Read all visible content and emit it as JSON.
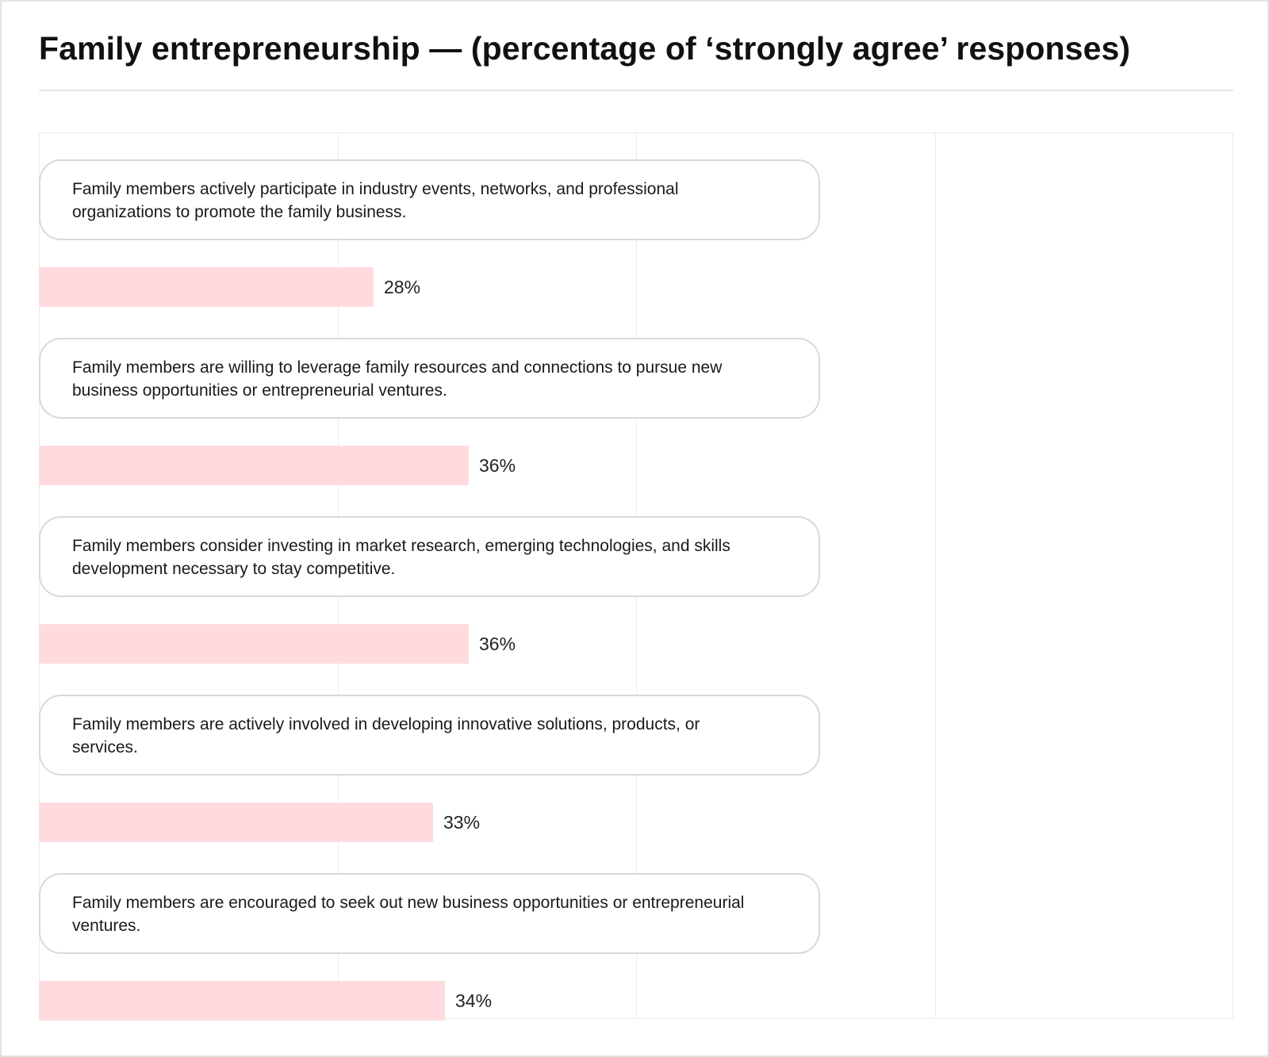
{
  "chart_data": {
    "type": "bar",
    "orientation": "horizontal",
    "title": "Family entrepreneurship — (percentage of ‘strongly agree’ responses)",
    "xlim": [
      0,
      100
    ],
    "unit": "%",
    "grid": true,
    "bar_color": "#ffdbe0",
    "categories": [
      "Family members actively participate in industry events, networks, and professional organizations to promote the family business.",
      "Family members are willing to leverage family resources and connections to pursue new business opportunities or entrepreneurial ventures.",
      "Family members consider investing in market research, emerging technologies, and skills development necessary to stay competitive.",
      "Family members are actively involved in developing innovative solutions, products, or services.",
      "Family members are encouraged to seek out new business opportunities or entrepreneurial ventures."
    ],
    "values": [
      28,
      36,
      36,
      33,
      34
    ],
    "data_labels": [
      "28%",
      "36%",
      "36%",
      "33%",
      "34%"
    ]
  }
}
